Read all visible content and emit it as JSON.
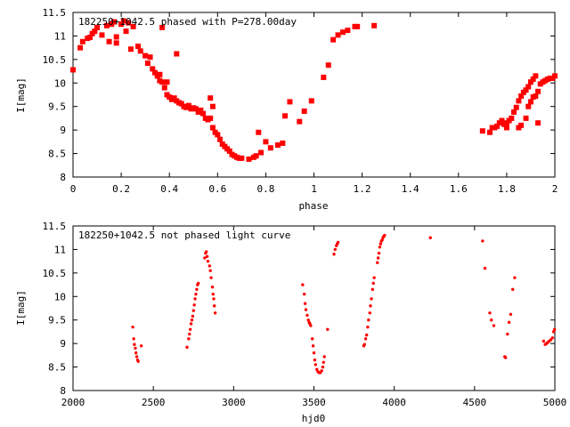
{
  "colors": {
    "points": "#ff0000",
    "axes": "#000000",
    "background": "#ffffff"
  },
  "chart_data": [
    {
      "type": "scatter",
      "title": "182250+1042.5 phased with P=278.00day",
      "xlabel": "phase",
      "ylabel": "I[mag]",
      "xlim": [
        0,
        2
      ],
      "ylim": [
        11.5,
        8
      ],
      "y_inverted": true,
      "grid": false,
      "marker": "square",
      "xticks": [
        0,
        0.2,
        0.4,
        0.6,
        0.8,
        1,
        1.2,
        1.4,
        1.6,
        1.8,
        2
      ],
      "xtick_labels": [
        "0",
        "0.2",
        "0.4",
        "0.6",
        "0.8",
        "1",
        "1.2",
        "1.4",
        "1.6",
        "1.8",
        "2"
      ],
      "yticks": [
        8,
        8.5,
        9,
        9.5,
        10,
        10.5,
        11,
        11.5
      ],
      "ytick_labels": [
        "8",
        "8.5",
        "9",
        "9.5",
        "10",
        "10.5",
        "11",
        "11.5"
      ],
      "points": [
        [
          0.0,
          10.28
        ],
        [
          0.03,
          10.75
        ],
        [
          0.04,
          10.88
        ],
        [
          0.06,
          10.95
        ],
        [
          0.07,
          10.97
        ],
        [
          0.08,
          11.05
        ],
        [
          0.09,
          11.1
        ],
        [
          0.1,
          11.18
        ],
        [
          0.12,
          11.02
        ],
        [
          0.14,
          11.22
        ],
        [
          0.15,
          10.88
        ],
        [
          0.16,
          11.25
        ],
        [
          0.17,
          11.3
        ],
        [
          0.18,
          10.98
        ],
        [
          0.18,
          10.85
        ],
        [
          0.2,
          11.25
        ],
        [
          0.21,
          11.32
        ],
        [
          0.22,
          11.1
        ],
        [
          0.23,
          11.28
        ],
        [
          0.24,
          10.72
        ],
        [
          0.25,
          11.2
        ],
        [
          0.27,
          10.78
        ],
        [
          0.28,
          10.68
        ],
        [
          0.3,
          10.58
        ],
        [
          0.31,
          10.42
        ],
        [
          0.32,
          10.55
        ],
        [
          0.33,
          10.3
        ],
        [
          0.34,
          10.22
        ],
        [
          0.35,
          10.15
        ],
        [
          0.36,
          10.05
        ],
        [
          0.36,
          10.18
        ],
        [
          0.37,
          10.02
        ],
        [
          0.37,
          11.18
        ],
        [
          0.38,
          9.9
        ],
        [
          0.39,
          10.02
        ],
        [
          0.39,
          9.75
        ],
        [
          0.4,
          9.7
        ],
        [
          0.41,
          9.65
        ],
        [
          0.42,
          9.68
        ],
        [
          0.43,
          9.62
        ],
        [
          0.43,
          10.62
        ],
        [
          0.44,
          9.58
        ],
        [
          0.45,
          9.56
        ],
        [
          0.46,
          9.5
        ],
        [
          0.47,
          9.48
        ],
        [
          0.48,
          9.52
        ],
        [
          0.49,
          9.45
        ],
        [
          0.5,
          9.47
        ],
        [
          0.51,
          9.45
        ],
        [
          0.52,
          9.38
        ],
        [
          0.53,
          9.42
        ],
        [
          0.54,
          9.35
        ],
        [
          0.55,
          9.25
        ],
        [
          0.56,
          9.22
        ],
        [
          0.57,
          9.25
        ],
        [
          0.57,
          9.68
        ],
        [
          0.58,
          9.05
        ],
        [
          0.58,
          9.5
        ],
        [
          0.59,
          8.95
        ],
        [
          0.6,
          8.9
        ],
        [
          0.61,
          8.8
        ],
        [
          0.62,
          8.7
        ],
        [
          0.63,
          8.65
        ],
        [
          0.64,
          8.6
        ],
        [
          0.65,
          8.55
        ],
        [
          0.66,
          8.48
        ],
        [
          0.67,
          8.45
        ],
        [
          0.68,
          8.42
        ],
        [
          0.69,
          8.4
        ],
        [
          0.7,
          8.4
        ],
        [
          0.73,
          8.38
        ],
        [
          0.75,
          8.42
        ],
        [
          0.76,
          8.45
        ],
        [
          0.78,
          8.52
        ],
        [
          0.77,
          8.95
        ],
        [
          0.8,
          8.75
        ],
        [
          0.82,
          8.62
        ],
        [
          0.85,
          8.68
        ],
        [
          0.87,
          8.72
        ],
        [
          0.88,
          9.3
        ],
        [
          0.9,
          9.6
        ],
        [
          0.94,
          9.18
        ],
        [
          0.96,
          9.4
        ],
        [
          0.99,
          9.62
        ],
        [
          1.04,
          10.12
        ],
        [
          1.06,
          10.38
        ],
        [
          1.08,
          10.92
        ],
        [
          1.1,
          11.02
        ],
        [
          1.12,
          11.08
        ],
        [
          1.14,
          11.12
        ],
        [
          1.17,
          11.2
        ],
        [
          1.18,
          11.2
        ],
        [
          1.25,
          11.22
        ],
        [
          1.7,
          8.98
        ],
        [
          1.73,
          8.95
        ],
        [
          1.74,
          9.05
        ],
        [
          1.75,
          9.05
        ],
        [
          1.76,
          9.08
        ],
        [
          1.77,
          9.15
        ],
        [
          1.78,
          9.2
        ],
        [
          1.79,
          9.12
        ],
        [
          1.8,
          9.15
        ],
        [
          1.81,
          9.2
        ],
        [
          1.82,
          9.25
        ],
        [
          1.83,
          9.38
        ],
        [
          1.84,
          9.48
        ],
        [
          1.85,
          9.62
        ],
        [
          1.86,
          9.72
        ],
        [
          1.87,
          9.8
        ],
        [
          1.88,
          9.85
        ],
        [
          1.89,
          9.92
        ],
        [
          1.9,
          10.02
        ],
        [
          1.91,
          10.08
        ],
        [
          1.92,
          10.15
        ],
        [
          1.85,
          9.05
        ],
        [
          1.86,
          9.1
        ],
        [
          1.88,
          9.25
        ],
        [
          1.89,
          9.5
        ],
        [
          1.9,
          9.6
        ],
        [
          1.91,
          9.7
        ],
        [
          1.92,
          9.72
        ],
        [
          1.93,
          9.82
        ],
        [
          1.94,
          9.98
        ],
        [
          1.95,
          10.02
        ],
        [
          1.96,
          10.05
        ],
        [
          1.97,
          10.08
        ],
        [
          1.98,
          10.1
        ],
        [
          1.99,
          10.1
        ],
        [
          2.0,
          10.15
        ],
        [
          1.93,
          9.15
        ],
        [
          1.8,
          9.05
        ]
      ]
    },
    {
      "type": "scatter",
      "title": "182250+1042.5 not phased light curve",
      "xlabel": "hjd0",
      "ylabel": "I[mag]",
      "xlim": [
        2000,
        5000
      ],
      "ylim": [
        11.5,
        8
      ],
      "y_inverted": true,
      "grid": false,
      "marker": "dot",
      "xticks": [
        2000,
        2500,
        3000,
        3500,
        4000,
        4500,
        5000
      ],
      "xtick_labels": [
        "2000",
        "2500",
        "3000",
        "3500",
        "4000",
        "4500",
        "5000"
      ],
      "yticks": [
        8,
        8.5,
        9,
        9.5,
        10,
        10.5,
        11,
        11.5
      ],
      "ytick_labels": [
        "8",
        "8.5",
        "9",
        "9.5",
        "10",
        "10.5",
        "11",
        "11.5"
      ],
      "points": [
        [
          2372,
          9.35
        ],
        [
          2378,
          9.1
        ],
        [
          2382,
          8.98
        ],
        [
          2388,
          8.9
        ],
        [
          2392,
          8.8
        ],
        [
          2397,
          8.72
        ],
        [
          2402,
          8.65
        ],
        [
          2406,
          8.62
        ],
        [
          2425,
          8.95
        ],
        [
          2710,
          8.92
        ],
        [
          2720,
          9.1
        ],
        [
          2725,
          9.2
        ],
        [
          2730,
          9.3
        ],
        [
          2735,
          9.42
        ],
        [
          2740,
          9.5
        ],
        [
          2745,
          9.58
        ],
        [
          2750,
          9.7
        ],
        [
          2755,
          9.82
        ],
        [
          2760,
          9.95
        ],
        [
          2765,
          10.05
        ],
        [
          2770,
          10.15
        ],
        [
          2775,
          10.25
        ],
        [
          2780,
          10.28
        ],
        [
          2820,
          10.82
        ],
        [
          2825,
          10.92
        ],
        [
          2830,
          10.95
        ],
        [
          2835,
          10.85
        ],
        [
          2840,
          10.75
        ],
        [
          2850,
          10.65
        ],
        [
          2855,
          10.55
        ],
        [
          2860,
          10.4
        ],
        [
          2868,
          10.2
        ],
        [
          2872,
          10.05
        ],
        [
          2876,
          9.95
        ],
        [
          2880,
          9.8
        ],
        [
          2885,
          9.65
        ],
        [
          3430,
          10.25
        ],
        [
          3440,
          10.05
        ],
        [
          3445,
          9.85
        ],
        [
          3450,
          9.72
        ],
        [
          3458,
          9.6
        ],
        [
          3465,
          9.5
        ],
        [
          3470,
          9.45
        ],
        [
          3475,
          9.42
        ],
        [
          3480,
          9.38
        ],
        [
          3490,
          9.1
        ],
        [
          3495,
          8.95
        ],
        [
          3500,
          8.8
        ],
        [
          3505,
          8.65
        ],
        [
          3510,
          8.55
        ],
        [
          3518,
          8.45
        ],
        [
          3525,
          8.4
        ],
        [
          3532,
          8.38
        ],
        [
          3540,
          8.38
        ],
        [
          3548,
          8.42
        ],
        [
          3555,
          8.5
        ],
        [
          3560,
          8.6
        ],
        [
          3565,
          8.72
        ],
        [
          3585,
          9.3
        ],
        [
          3625,
          10.9
        ],
        [
          3632,
          11.0
        ],
        [
          3640,
          11.08
        ],
        [
          3645,
          11.12
        ],
        [
          3650,
          11.15
        ],
        [
          3810,
          8.95
        ],
        [
          3815,
          8.98
        ],
        [
          3822,
          9.1
        ],
        [
          3828,
          9.18
        ],
        [
          3835,
          9.35
        ],
        [
          3840,
          9.5
        ],
        [
          3848,
          9.65
        ],
        [
          3852,
          9.8
        ],
        [
          3858,
          9.95
        ],
        [
          3865,
          10.15
        ],
        [
          3870,
          10.28
        ],
        [
          3875,
          10.4
        ],
        [
          3895,
          10.72
        ],
        [
          3900,
          10.82
        ],
        [
          3905,
          10.92
        ],
        [
          3910,
          11.05
        ],
        [
          3915,
          11.12
        ],
        [
          3920,
          11.18
        ],
        [
          3925,
          11.2
        ],
        [
          3930,
          11.25
        ],
        [
          3935,
          11.28
        ],
        [
          3940,
          11.3
        ],
        [
          4225,
          11.25
        ],
        [
          4550,
          11.18
        ],
        [
          4565,
          10.6
        ],
        [
          4595,
          9.65
        ],
        [
          4605,
          9.5
        ],
        [
          4620,
          9.38
        ],
        [
          4688,
          8.72
        ],
        [
          4693,
          8.7
        ],
        [
          4705,
          9.2
        ],
        [
          4715,
          9.45
        ],
        [
          4725,
          9.62
        ],
        [
          4738,
          10.15
        ],
        [
          4750,
          10.4
        ],
        [
          4930,
          9.05
        ],
        [
          4940,
          8.98
        ],
        [
          4948,
          9.0
        ],
        [
          4955,
          9.02
        ],
        [
          4965,
          9.05
        ],
        [
          4975,
          9.08
        ],
        [
          4985,
          9.12
        ],
        [
          4992,
          9.25
        ],
        [
          4998,
          9.3
        ]
      ]
    }
  ]
}
